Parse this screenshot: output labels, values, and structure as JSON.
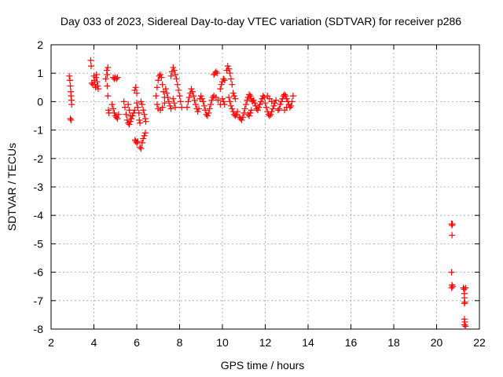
{
  "chart_data": {
    "type": "scatter",
    "title": "Day 033 of 2023, Sidereal Day-to-day VTEC variation (SDTVAR) for receiver p286",
    "xlabel": "GPS time / hours",
    "ylabel": "SDTVAR / TECUs",
    "xlim": [
      2,
      22
    ],
    "ylim": [
      -8,
      2
    ],
    "xticks": [
      2,
      4,
      6,
      8,
      10,
      12,
      14,
      16,
      18,
      20,
      22
    ],
    "yticks": [
      -8,
      -7,
      -6,
      -5,
      -4,
      -3,
      -2,
      -1,
      0,
      1,
      2
    ],
    "grid": true,
    "marker": "plus",
    "color": "#ff0000",
    "series": [
      {
        "name": "SDTVAR",
        "points": [
          [
            2.85,
            0.9
          ],
          [
            2.88,
            0.75
          ],
          [
            2.9,
            0.55
          ],
          [
            2.92,
            0.35
          ],
          [
            2.93,
            0.2
          ],
          [
            2.95,
            0.05
          ],
          [
            2.96,
            -0.1
          ],
          [
            2.9,
            -0.6
          ],
          [
            2.93,
            -0.65
          ],
          [
            3.85,
            1.45
          ],
          [
            3.87,
            1.25
          ],
          [
            3.9,
            0.65
          ],
          [
            3.95,
            0.6
          ],
          [
            4.0,
            0.9
          ],
          [
            4.02,
            0.75
          ],
          [
            4.05,
            0.6
          ],
          [
            4.08,
            0.5
          ],
          [
            4.1,
            0.85
          ],
          [
            4.12,
            0.95
          ],
          [
            4.15,
            0.7
          ],
          [
            4.18,
            0.55
          ],
          [
            4.2,
            0.45
          ],
          [
            4.55,
            0.8
          ],
          [
            4.6,
            1.1
          ],
          [
            4.62,
            0.95
          ],
          [
            4.65,
            1.2
          ],
          [
            4.62,
            0.55
          ],
          [
            4.65,
            0.2
          ],
          [
            4.68,
            -0.3
          ],
          [
            4.7,
            -0.4
          ],
          [
            4.9,
            0.85
          ],
          [
            4.95,
            0.8
          ],
          [
            5.0,
            0.85
          ],
          [
            5.05,
            0.8
          ],
          [
            5.1,
            0.85
          ],
          [
            4.85,
            -0.1
          ],
          [
            4.9,
            -0.25
          ],
          [
            4.95,
            -0.4
          ],
          [
            5.0,
            -0.5
          ],
          [
            5.05,
            -0.55
          ],
          [
            5.1,
            -0.6
          ],
          [
            5.15,
            -0.45
          ],
          [
            5.4,
            0.0
          ],
          [
            5.45,
            -0.2
          ],
          [
            5.5,
            -0.45
          ],
          [
            5.55,
            -0.65
          ],
          [
            5.6,
            -0.75
          ],
          [
            5.65,
            -0.8
          ],
          [
            5.7,
            -0.7
          ],
          [
            5.75,
            -0.6
          ],
          [
            5.8,
            -0.5
          ],
          [
            5.85,
            -0.4
          ],
          [
            5.9,
            -0.3
          ],
          [
            5.6,
            -0.1
          ],
          [
            5.65,
            -0.3
          ],
          [
            5.7,
            -0.5
          ],
          [
            5.9,
            0.4
          ],
          [
            5.95,
            0.5
          ],
          [
            6.0,
            0.3
          ],
          [
            6.0,
            -0.05
          ],
          [
            6.05,
            -0.2
          ],
          [
            6.1,
            -0.4
          ],
          [
            6.12,
            -0.65
          ],
          [
            6.15,
            -0.75
          ],
          [
            5.92,
            -1.35
          ],
          [
            5.95,
            -1.4
          ],
          [
            6.0,
            -1.45
          ],
          [
            6.05,
            -1.4
          ],
          [
            6.15,
            -1.6
          ],
          [
            6.2,
            -1.65
          ],
          [
            6.25,
            -1.45
          ],
          [
            6.3,
            -1.3
          ],
          [
            6.35,
            -1.2
          ],
          [
            6.4,
            -1.1
          ],
          [
            6.2,
            0.0
          ],
          [
            6.25,
            -0.1
          ],
          [
            6.3,
            -0.3
          ],
          [
            6.35,
            -0.45
          ],
          [
            6.4,
            -0.6
          ],
          [
            6.42,
            -0.7
          ],
          [
            6.9,
            0.2
          ],
          [
            6.95,
            0.5
          ],
          [
            7.0,
            0.75
          ],
          [
            7.05,
            0.9
          ],
          [
            7.1,
            0.95
          ],
          [
            7.15,
            0.85
          ],
          [
            7.2,
            0.6
          ],
          [
            7.25,
            0.35
          ],
          [
            7.3,
            0.15
          ],
          [
            6.95,
            -0.1
          ],
          [
            7.0,
            -0.25
          ],
          [
            7.1,
            -0.3
          ],
          [
            7.2,
            -0.2
          ],
          [
            7.3,
            -0.05
          ],
          [
            7.35,
            0.45
          ],
          [
            7.4,
            0.3
          ],
          [
            7.45,
            0.15
          ],
          [
            7.5,
            0.0
          ],
          [
            7.55,
            -0.15
          ],
          [
            7.6,
            -0.25
          ],
          [
            7.6,
            0.9
          ],
          [
            7.65,
            1.05
          ],
          [
            7.7,
            1.2
          ],
          [
            7.75,
            1.1
          ],
          [
            7.8,
            0.95
          ],
          [
            7.85,
            0.8
          ],
          [
            7.9,
            0.6
          ],
          [
            7.95,
            0.4
          ],
          [
            8.0,
            0.2
          ],
          [
            8.05,
            0.0
          ],
          [
            8.1,
            -0.2
          ],
          [
            7.7,
            0.1
          ],
          [
            7.75,
            -0.05
          ],
          [
            7.8,
            -0.2
          ],
          [
            8.35,
            -0.2
          ],
          [
            8.4,
            0.0
          ],
          [
            8.45,
            0.15
          ],
          [
            8.5,
            0.3
          ],
          [
            8.55,
            0.45
          ],
          [
            8.6,
            0.35
          ],
          [
            8.65,
            0.2
          ],
          [
            8.7,
            0.05
          ],
          [
            8.75,
            -0.1
          ],
          [
            8.8,
            -0.25
          ],
          [
            8.85,
            -0.35
          ],
          [
            8.9,
            -0.25
          ],
          [
            8.95,
            0.1
          ],
          [
            9.0,
            0.2
          ],
          [
            9.05,
            0.1
          ],
          [
            9.1,
            0.0
          ],
          [
            9.15,
            -0.15
          ],
          [
            9.2,
            -0.3
          ],
          [
            9.25,
            -0.45
          ],
          [
            9.3,
            -0.5
          ],
          [
            9.35,
            -0.4
          ],
          [
            9.4,
            -0.25
          ],
          [
            9.45,
            -0.1
          ],
          [
            9.5,
            0.05
          ],
          [
            9.55,
            0.15
          ],
          [
            9.6,
            0.2
          ],
          [
            9.7,
            0.15
          ],
          [
            9.8,
            0.05
          ],
          [
            9.9,
            -0.1
          ],
          [
            9.6,
            0.95
          ],
          [
            9.65,
            1.0
          ],
          [
            9.7,
            1.05
          ],
          [
            9.75,
            1.0
          ],
          [
            9.9,
            0.45
          ],
          [
            9.95,
            0.6
          ],
          [
            10.0,
            0.7
          ],
          [
            10.05,
            0.8
          ],
          [
            10.1,
            0.75
          ],
          [
            10.0,
            0.1
          ],
          [
            10.05,
            0.0
          ],
          [
            10.1,
            -0.1
          ],
          [
            10.2,
            1.1
          ],
          [
            10.25,
            1.25
          ],
          [
            10.3,
            1.15
          ],
          [
            10.35,
            1.0
          ],
          [
            10.4,
            0.8
          ],
          [
            10.45,
            0.6
          ],
          [
            10.3,
            0.15
          ],
          [
            10.35,
            0.0
          ],
          [
            10.4,
            -0.15
          ],
          [
            10.45,
            -0.25
          ],
          [
            10.5,
            -0.35
          ],
          [
            10.55,
            -0.45
          ],
          [
            10.6,
            -0.5
          ],
          [
            10.65,
            -0.45
          ],
          [
            10.7,
            -0.35
          ],
          [
            10.5,
            0.3
          ],
          [
            10.55,
            0.2
          ],
          [
            10.6,
            0.1
          ],
          [
            10.8,
            -0.55
          ],
          [
            10.85,
            -0.6
          ],
          [
            10.9,
            -0.65
          ],
          [
            10.95,
            -0.55
          ],
          [
            11.0,
            -0.4
          ],
          [
            11.05,
            -0.25
          ],
          [
            11.1,
            -0.1
          ],
          [
            11.15,
            0.05
          ],
          [
            11.2,
            0.15
          ],
          [
            11.25,
            0.25
          ],
          [
            11.3,
            0.2
          ],
          [
            11.35,
            0.1
          ],
          [
            11.4,
            0.0
          ],
          [
            11.2,
            -0.45
          ],
          [
            11.25,
            -0.5
          ],
          [
            11.3,
            -0.4
          ],
          [
            11.35,
            -0.3
          ],
          [
            11.45,
            0.05
          ],
          [
            11.5,
            -0.05
          ],
          [
            11.55,
            -0.15
          ],
          [
            11.6,
            -0.25
          ],
          [
            11.65,
            -0.3
          ],
          [
            11.7,
            -0.2
          ],
          [
            11.75,
            -0.1
          ],
          [
            11.8,
            0.0
          ],
          [
            11.85,
            0.1
          ],
          [
            11.9,
            0.2
          ],
          [
            11.95,
            0.15
          ],
          [
            12.0,
            -0.05
          ],
          [
            12.05,
            -0.2
          ],
          [
            12.1,
            -0.35
          ],
          [
            12.15,
            -0.45
          ],
          [
            12.2,
            -0.5
          ],
          [
            12.25,
            -0.45
          ],
          [
            12.3,
            -0.35
          ],
          [
            12.35,
            -0.25
          ],
          [
            12.4,
            -0.15
          ],
          [
            12.45,
            -0.05
          ],
          [
            12.5,
            0.05
          ],
          [
            12.1,
            0.2
          ],
          [
            12.2,
            0.1
          ],
          [
            12.3,
            0.0
          ],
          [
            12.6,
            -0.3
          ],
          [
            12.65,
            -0.25
          ],
          [
            12.7,
            -0.1
          ],
          [
            12.75,
            0.0
          ],
          [
            12.8,
            0.1
          ],
          [
            12.85,
            0.2
          ],
          [
            12.9,
            0.25
          ],
          [
            12.95,
            0.2
          ],
          [
            13.0,
            0.1
          ],
          [
            13.05,
            0.0
          ],
          [
            13.1,
            -0.1
          ],
          [
            13.15,
            -0.2
          ],
          [
            13.2,
            -0.15
          ],
          [
            13.25,
            0.0
          ],
          [
            13.3,
            0.2
          ],
          [
            12.9,
            -0.3
          ],
          [
            13.0,
            -0.2
          ],
          [
            20.7,
            -4.3
          ],
          [
            20.72,
            -4.35
          ],
          [
            20.74,
            -4.3
          ],
          [
            20.72,
            -4.7
          ],
          [
            20.7,
            -6.0
          ],
          [
            20.72,
            -6.45
          ],
          [
            20.75,
            -6.5
          ],
          [
            20.7,
            -6.55
          ],
          [
            21.25,
            -6.55
          ],
          [
            21.28,
            -6.6
          ],
          [
            21.3,
            -6.75
          ],
          [
            21.3,
            -6.9
          ],
          [
            21.32,
            -7.05
          ],
          [
            21.3,
            -7.1
          ],
          [
            21.35,
            -6.55
          ],
          [
            21.3,
            -7.65
          ],
          [
            21.32,
            -7.75
          ],
          [
            21.3,
            -7.85
          ],
          [
            21.35,
            -7.9
          ]
        ]
      }
    ]
  }
}
